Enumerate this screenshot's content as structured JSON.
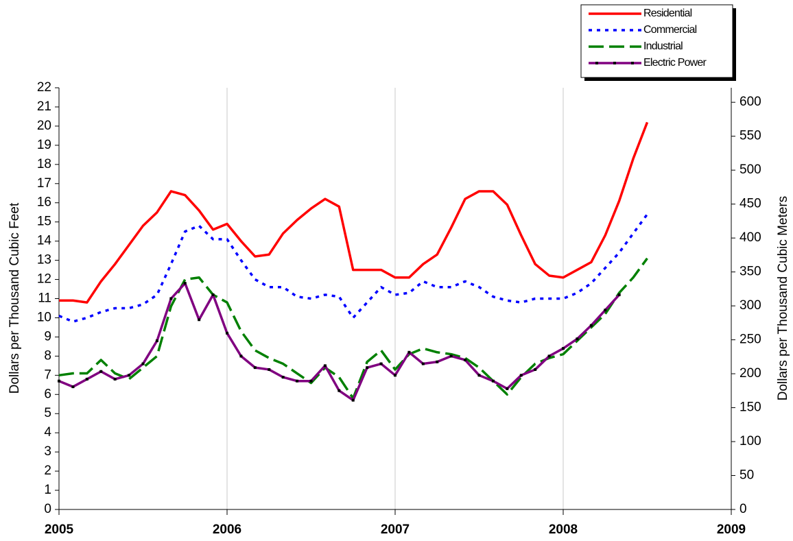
{
  "chart_data": {
    "type": "line",
    "y_label": "Dollars per Thousand Cubic Feet",
    "y2_label": "Dollars per Thousand Cubic Meters",
    "x": [
      0,
      1,
      2,
      3,
      4,
      5,
      6,
      7,
      8,
      9,
      10,
      11,
      12,
      13,
      14,
      15,
      16,
      17,
      18,
      19,
      20,
      21,
      22,
      23,
      24,
      25,
      26,
      27,
      28,
      29,
      30,
      31,
      32,
      33,
      34,
      35,
      36,
      37,
      38,
      39,
      40,
      41,
      42
    ],
    "xlim": [
      0,
      48
    ],
    "xticks": [
      {
        "value": 0,
        "label": "2005"
      },
      {
        "value": 12,
        "label": "2006"
      },
      {
        "value": 24,
        "label": "2007"
      },
      {
        "value": 36,
        "label": "2008"
      },
      {
        "value": 48,
        "label": "2009"
      }
    ],
    "ylim": [
      0,
      22
    ],
    "yticks": [
      0,
      1,
      2,
      3,
      4,
      5,
      6,
      7,
      8,
      9,
      10,
      11,
      12,
      13,
      14,
      15,
      16,
      17,
      18,
      19,
      20,
      21,
      22
    ],
    "y2lim": [
      0,
      621.4
    ],
    "y2ticks": [
      0,
      50,
      100,
      150,
      200,
      250,
      300,
      350,
      400,
      450,
      500,
      550,
      600
    ],
    "grid": "x",
    "legend": "top-right",
    "series": [
      {
        "name": "Residential",
        "color": "#ff0000",
        "dash": "solid",
        "values": [
          10.9,
          10.9,
          10.8,
          11.9,
          12.8,
          13.8,
          14.8,
          15.5,
          16.6,
          16.4,
          15.6,
          14.6,
          14.9,
          14.0,
          13.2,
          13.3,
          14.4,
          15.1,
          15.7,
          16.2,
          15.8,
          12.5,
          12.5,
          12.5,
          12.1,
          12.1,
          12.8,
          13.3,
          14.7,
          16.2,
          16.6,
          16.6,
          15.9,
          14.3,
          12.8,
          12.2,
          12.1,
          12.5,
          12.9,
          14.3,
          16.1,
          18.3,
          20.2
        ]
      },
      {
        "name": "Commercial",
        "color": "#0000ff",
        "dash": "dotted",
        "values": [
          10.1,
          9.8,
          10.0,
          10.3,
          10.5,
          10.5,
          10.7,
          11.2,
          12.8,
          14.5,
          14.8,
          14.1,
          14.1,
          13.0,
          12.0,
          11.6,
          11.6,
          11.1,
          11.0,
          11.2,
          11.1,
          10.0,
          10.8,
          11.6,
          11.2,
          11.3,
          11.9,
          11.6,
          11.6,
          11.9,
          11.6,
          11.1,
          10.9,
          10.8,
          11.0,
          11.0,
          11.0,
          11.3,
          11.8,
          12.6,
          13.4,
          14.4,
          15.4
        ]
      },
      {
        "name": "Industrial",
        "color": "#008000",
        "dash": "dashed",
        "values": [
          7.0,
          7.1,
          7.1,
          7.8,
          7.1,
          6.8,
          7.4,
          8.0,
          10.6,
          12.0,
          12.1,
          11.2,
          10.8,
          9.3,
          8.3,
          7.9,
          7.6,
          7.1,
          6.6,
          7.4,
          6.9,
          5.8,
          7.7,
          8.3,
          7.3,
          8.1,
          8.4,
          8.2,
          8.1,
          7.9,
          7.4,
          6.7,
          6.0,
          6.9,
          7.6,
          7.9,
          8.1,
          8.8,
          9.5,
          10.2,
          11.3,
          12.1,
          13.1
        ]
      },
      {
        "name": "Electric Power",
        "color": "#800080",
        "dash": "solid",
        "markers": true,
        "values": [
          6.7,
          6.4,
          6.8,
          7.2,
          6.8,
          7.0,
          7.6,
          8.8,
          11.0,
          11.8,
          9.9,
          11.2,
          9.2,
          8.0,
          7.4,
          7.3,
          6.9,
          6.7,
          6.7,
          7.5,
          6.2,
          5.7,
          7.4,
          7.6,
          7.0,
          8.2,
          7.6,
          7.7,
          8.0,
          7.8,
          7.0,
          6.7,
          6.3,
          7.0,
          7.3,
          8.0,
          8.4,
          8.9,
          9.6,
          10.4,
          11.2,
          null,
          null
        ]
      }
    ]
  }
}
